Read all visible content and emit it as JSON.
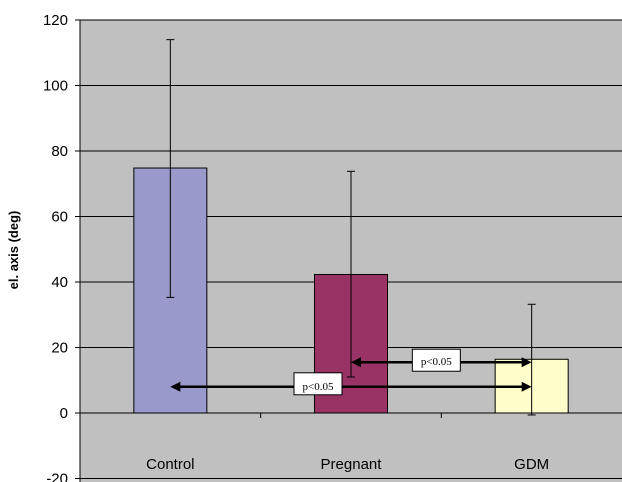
{
  "chart_data": {
    "type": "bar",
    "title": "",
    "xlabel": "",
    "ylabel": "el. axis (deg)",
    "ylim": [
      -20,
      120
    ],
    "yticks": [
      -20,
      0,
      20,
      40,
      60,
      80,
      100,
      120
    ],
    "grid": true,
    "categories": [
      "Control",
      "Pregnant",
      "GDM"
    ],
    "values": [
      74.8,
      42.3,
      16.4
    ],
    "error_low": [
      35.3,
      11.0,
      -0.6
    ],
    "error_high": [
      114.0,
      73.8,
      33.2
    ],
    "colors": [
      "#9999CC",
      "#993366",
      "#FFFFCC"
    ],
    "plot_background": "#C0C0C0",
    "annotations": [
      {
        "text": "p<0.05",
        "from": "Control",
        "to": "GDM",
        "y": 8
      },
      {
        "text": "p<0.05",
        "from": "Pregnant",
        "to": "GDM",
        "y": 15.5
      }
    ]
  }
}
